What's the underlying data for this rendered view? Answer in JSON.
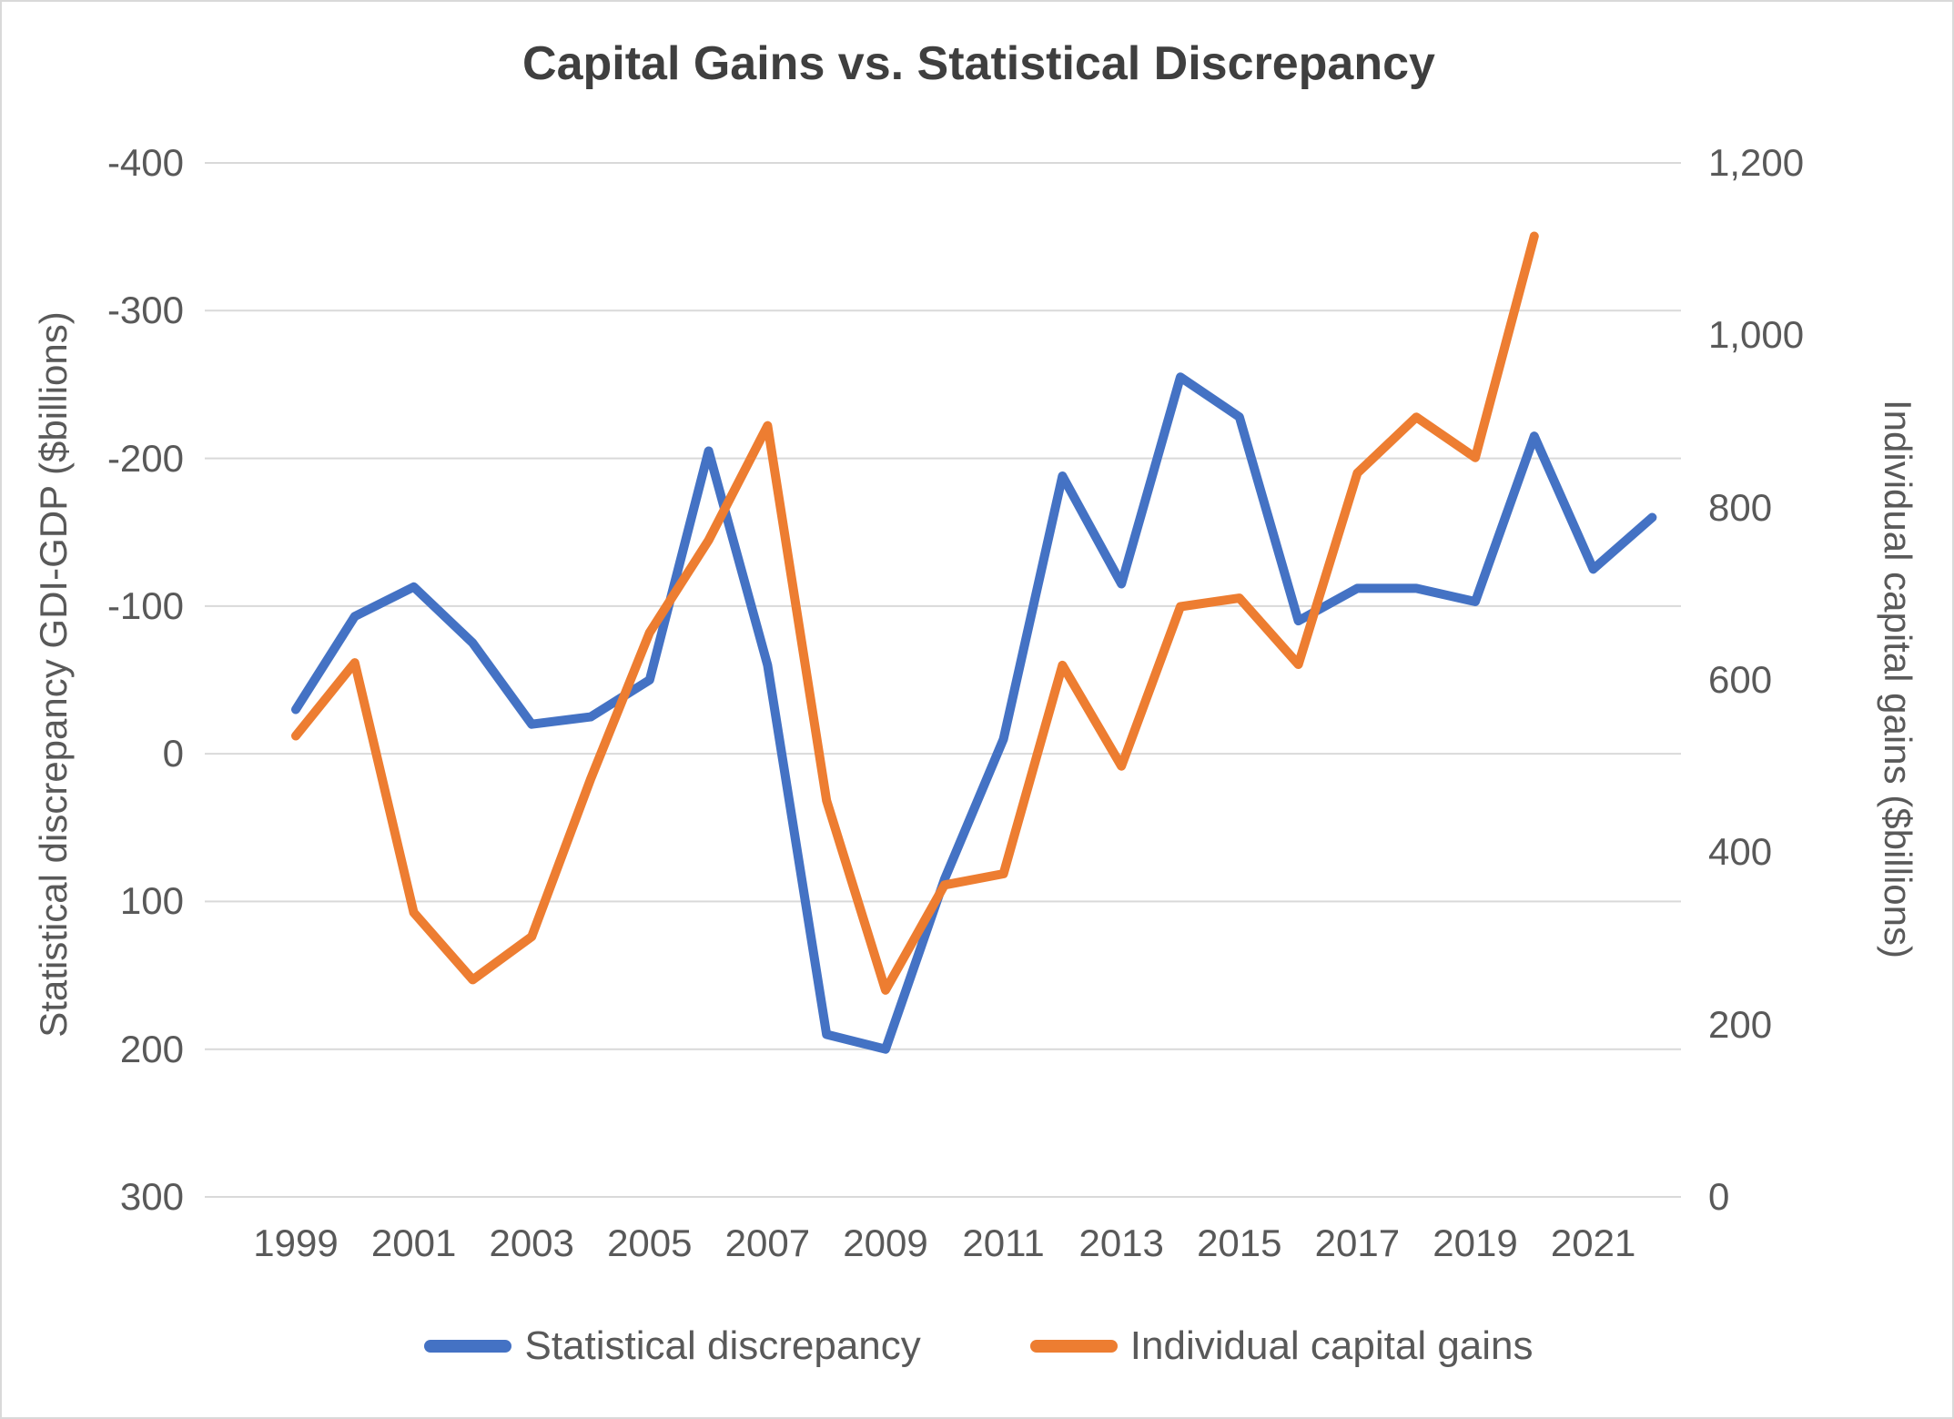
{
  "title": "Capital Gains vs. Statistical Discrepancy",
  "chart_data": {
    "type": "line",
    "x": [
      1999,
      2000,
      2001,
      2002,
      2003,
      2004,
      2005,
      2006,
      2007,
      2008,
      2009,
      2010,
      2011,
      2012,
      2013,
      2014,
      2015,
      2016,
      2017,
      2018,
      2019,
      2020,
      2021,
      2022
    ],
    "x_tick_labels": [
      "1999",
      "2001",
      "2003",
      "2005",
      "2007",
      "2009",
      "2011",
      "2013",
      "2015",
      "2017",
      "2019",
      "2021"
    ],
    "series": [
      {
        "name": "Statistical discrepancy",
        "axis": "left",
        "color": "#4472C4",
        "values": [
          -30,
          -93,
          -113,
          -75,
          -20,
          -25,
          -50,
          -205,
          -60,
          190,
          200,
          85,
          -10,
          -188,
          -115,
          -255,
          -228,
          -90,
          -112,
          -112,
          -103,
          -215,
          -125,
          -160
        ]
      },
      {
        "name": "Individual capital gains",
        "axis": "right",
        "color": "#ED7D31",
        "values": [
          535,
          620,
          330,
          252,
          302,
          485,
          655,
          762,
          895,
          460,
          240,
          362,
          375,
          617,
          500,
          685,
          695,
          618,
          840,
          905,
          858,
          1115
        ]
      }
    ],
    "left_axis": {
      "title": "Statistical discrepancy GDI-GDP ($billions)",
      "min": -400,
      "max": 300,
      "step": 100,
      "reversed": true,
      "tick_labels": [
        "-400",
        "-300",
        "-200",
        "-100",
        "0",
        "100",
        "200",
        "300"
      ]
    },
    "right_axis": {
      "title": "Individual capital gains ($billions)",
      "min": 0,
      "max": 1200,
      "step": 200,
      "tick_labels": [
        "1,200",
        "1,000",
        "800",
        "600",
        "400",
        "200",
        "0"
      ]
    },
    "legend_position": "bottom",
    "grid": true,
    "gridline_color": "#d9d9d9",
    "background_color": "#ffffff",
    "title_color": "#3f3f3f",
    "label_color": "#595959"
  }
}
